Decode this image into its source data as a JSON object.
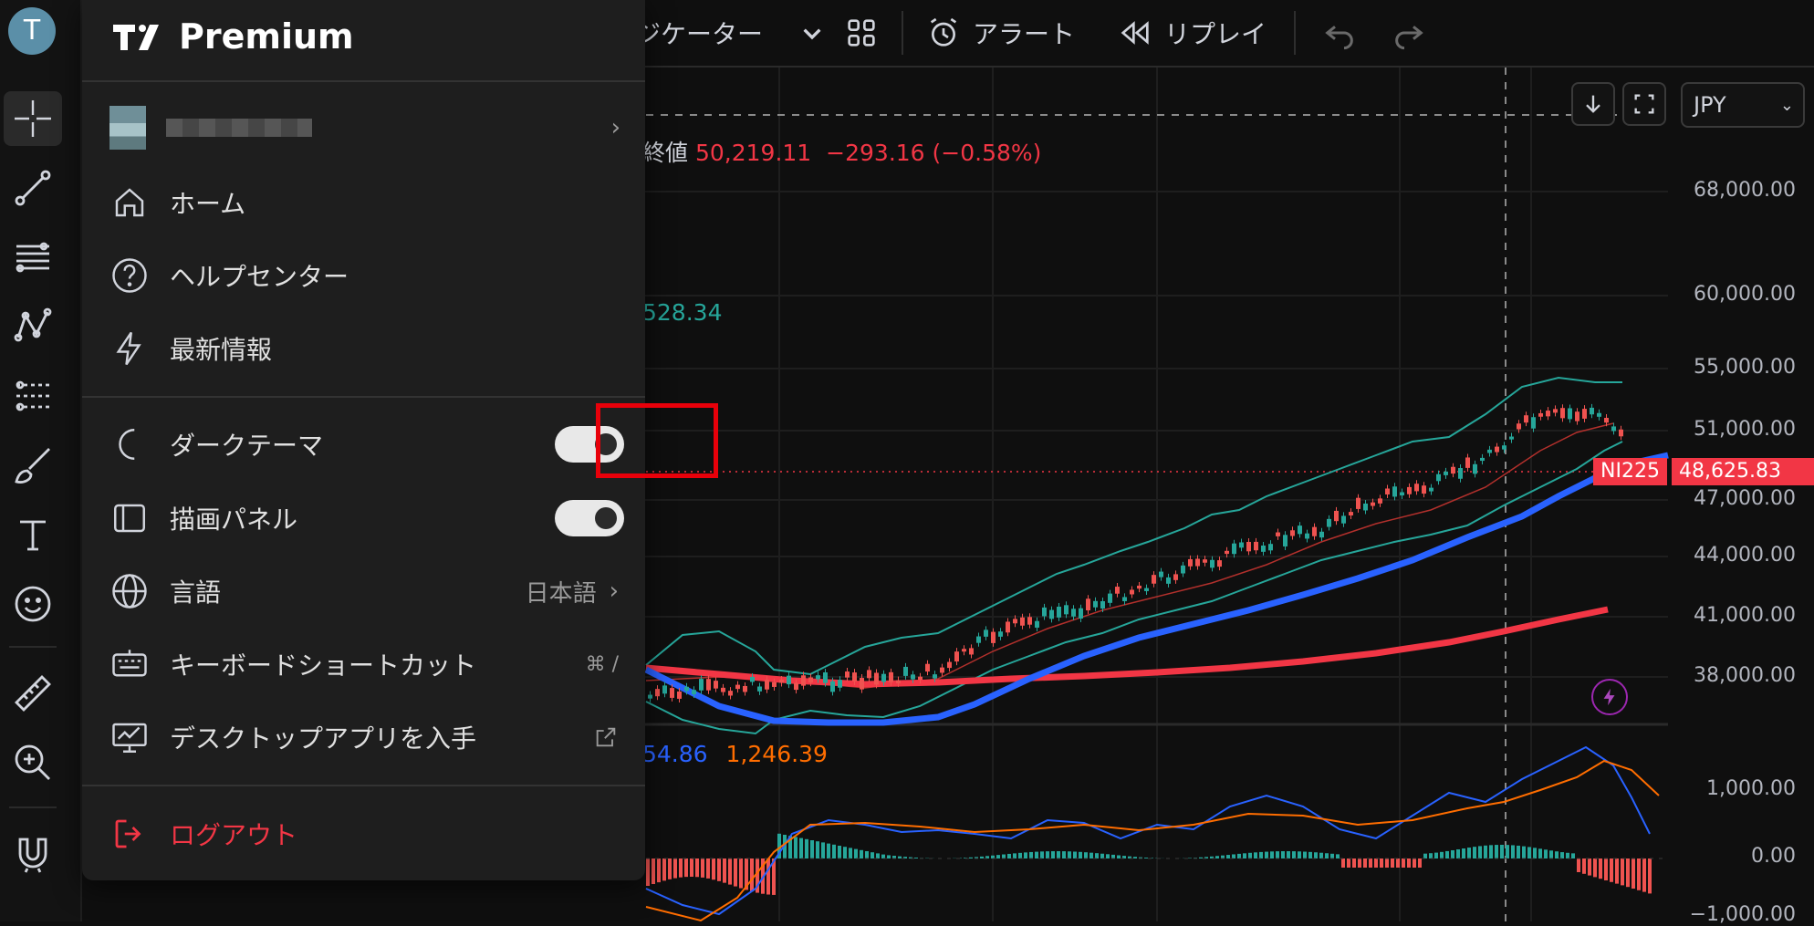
{
  "user": {
    "avatar_letter": "T"
  },
  "toolbar": {
    "indicators_label": "ジケーター",
    "alert_label": "アラート",
    "replay_label": "リプレイ"
  },
  "menu": {
    "brand": "Premium",
    "items": {
      "home": "ホーム",
      "help": "ヘルプセンター",
      "news": "最新情報",
      "dark_theme": "ダークテーマ",
      "drawing_panel": "描画パネル",
      "language": "言語",
      "language_value": "日本語",
      "shortcuts": "キーボードショートカット",
      "shortcuts_key": "⌘ /",
      "desktop_app": "デスクトップアプリを入手",
      "logout": "ログアウト"
    },
    "toggles": {
      "dark_theme_on": true,
      "drawing_panel_on": true
    }
  },
  "chart": {
    "currency": "JPY",
    "legend_close_label": "終値",
    "legend_close_value": "50,219.11",
    "legend_change": "−293.16 (−0.58%)",
    "legend_bb_value": "528.34",
    "legend_macd_1": "54.86",
    "legend_macd_2": "1,246.39",
    "symbol_tag": "NI225",
    "last_price": "48,625.83",
    "price_axis": [
      "68,000.00",
      "60,000.00",
      "55,000.00",
      "51,000.00",
      "47,000.00",
      "44,000.00",
      "41,000.00",
      "38,000.00"
    ],
    "macd_axis": [
      "1,000.00",
      "0.00",
      "−1,000.00"
    ],
    "colors": {
      "up": "#26a69a",
      "down": "#ef5350",
      "ma_fast": "#2962ff",
      "ma_slow": "#f23645",
      "macd": "#2962ff",
      "signal": "#ff6d00"
    }
  }
}
